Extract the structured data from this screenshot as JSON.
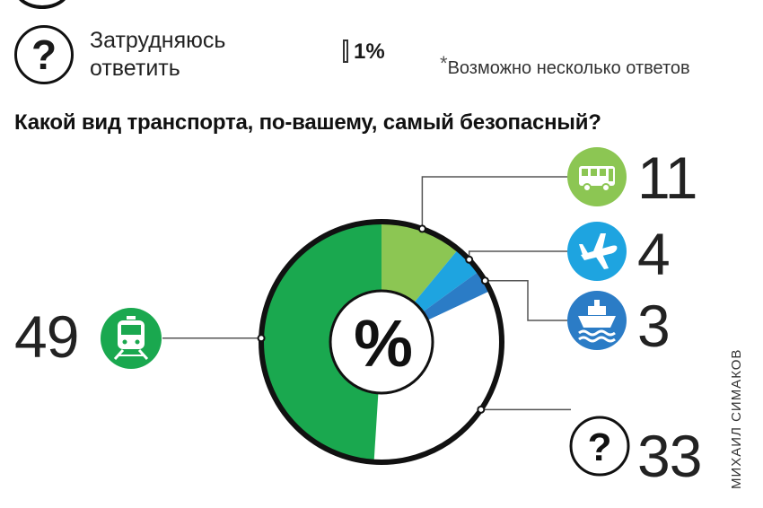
{
  "prev_item": {
    "icon": "question-mark-icon",
    "label": "Затрудняюсь ответить",
    "value": 1,
    "value_label": "1%"
  },
  "footnote": {
    "star": "*",
    "text": "Возможно несколько ответов"
  },
  "chart_data": {
    "type": "pie",
    "title": "Какой вид транспорта, по-вашему, самый безопасный?",
    "center_label": "%",
    "slices": [
      {
        "icon": "bus-icon",
        "value": 11,
        "color": "#8cc653"
      },
      {
        "icon": "airplane-icon",
        "value": 4,
        "color": "#1ea4e0"
      },
      {
        "icon": "ship-icon",
        "value": 3,
        "color": "#2b7cc6"
      },
      {
        "icon": "question-mark-icon",
        "value": 33,
        "color": "#ffffff"
      },
      {
        "icon": "train-icon",
        "value": 49,
        "color": "#1aa84f"
      }
    ]
  },
  "credit": "МИХАИЛ СИМАКОВ"
}
